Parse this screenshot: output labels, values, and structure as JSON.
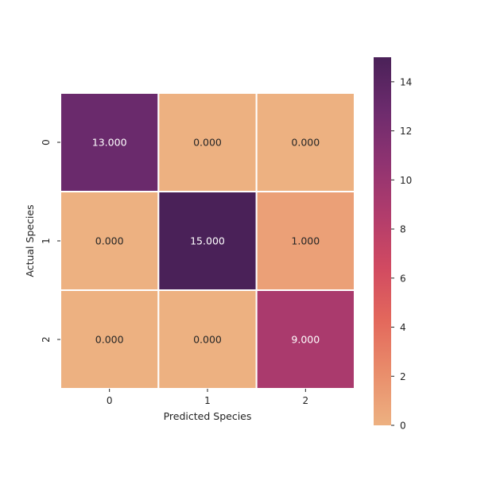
{
  "chart_data": {
    "type": "heatmap",
    "title": "",
    "xlabel": "Predicted Species",
    "ylabel": "Actual Species",
    "x_categories": [
      "0",
      "1",
      "2"
    ],
    "y_categories": [
      "0",
      "1",
      "2"
    ],
    "values": [
      [
        13,
        0,
        0
      ],
      [
        0,
        15,
        1
      ],
      [
        0,
        0,
        9
      ]
    ],
    "value_format_decimals": 3,
    "colormap": "flare",
    "color_range": [
      0,
      15
    ],
    "colorbar_ticks": [
      0,
      2,
      4,
      6,
      8,
      10,
      12,
      14
    ],
    "colorbar_placement": "right",
    "cell_border_color": "#ffffff",
    "colormap_stops": [
      "#edb181",
      "#e98d6b",
      "#e3685c",
      "#d14a61",
      "#b13c6c",
      "#8f3371",
      "#6c2b6d",
      "#4a2158"
    ],
    "text_colors": {
      "light": "#ffffff",
      "dark": "#262626"
    }
  }
}
